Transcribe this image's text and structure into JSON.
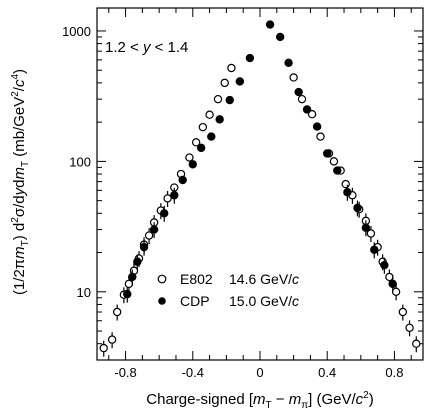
{
  "chart_data": {
    "type": "scatter",
    "xlabel": "Charge-signed [mT − mπ] (GeV/c2)",
    "ylabel": "(1/2πmT) d2σ/dydmT (mb/GeV2/c4)",
    "annotation": "1.2 < y < 1.4",
    "xlim": [
      -0.97,
      0.97
    ],
    "ylim": [
      3,
      1500
    ],
    "yscale": "log",
    "x_ticks": [
      -0.8,
      -0.4,
      0,
      0.4,
      0.8
    ],
    "x_tick_labels": [
      "-0.8",
      "-0.4",
      "0",
      "0.4",
      "0.8"
    ],
    "y_ticks": [
      10,
      100,
      1000
    ],
    "y_tick_labels": [
      "10",
      "100",
      "1000"
    ],
    "grid": false,
    "legend_position": "lower-center",
    "series": [
      {
        "name": "E802  14.6 GeV/c",
        "marker": "open-circle",
        "x": [
          -0.93,
          -0.88,
          -0.85,
          -0.81,
          -0.78,
          -0.75,
          -0.72,
          -0.69,
          -0.66,
          -0.63,
          -0.59,
          -0.55,
          -0.51,
          -0.47,
          -0.42,
          -0.38,
          -0.34,
          -0.3,
          -0.25,
          -0.21,
          -0.17,
          0.2,
          0.25,
          0.31,
          0.36,
          0.41,
          0.44,
          0.48,
          0.51,
          0.55,
          0.59,
          0.63,
          0.66,
          0.7,
          0.73,
          0.77,
          0.81,
          0.85,
          0.89,
          0.93
        ],
        "y": [
          3.7,
          4.3,
          7,
          9.5,
          11.5,
          14.5,
          18,
          23,
          27,
          34,
          42,
          52,
          63,
          80,
          107,
          140,
          183,
          228,
          300,
          400,
          520,
          440,
          300,
          230,
          155,
          115,
          100,
          85,
          67,
          55,
          43,
          35,
          28,
          22,
          17,
          13,
          10,
          7,
          5.3,
          4
        ]
      },
      {
        "name": "CDP  15.0 GeV/c",
        "marker": "filled-circle",
        "x": [
          -0.79,
          -0.76,
          -0.73,
          -0.69,
          -0.63,
          -0.57,
          -0.51,
          -0.46,
          -0.4,
          -0.35,
          -0.29,
          -0.24,
          -0.18,
          -0.12,
          -0.06,
          0.06,
          0.12,
          0.17,
          0.23,
          0.28,
          0.34,
          0.4,
          0.46,
          0.52,
          0.58,
          0.63,
          0.68,
          0.74,
          0.79
        ],
        "y": [
          9.6,
          13,
          17,
          22,
          30,
          40,
          55,
          72,
          95,
          127,
          155,
          210,
          295,
          410,
          620,
          1120,
          900,
          570,
          340,
          250,
          185,
          115,
          85,
          58,
          44,
          31,
          21,
          16,
          11.5
        ]
      }
    ]
  },
  "axis": {
    "xlabel_prefix": "Charge-signed [",
    "xlabel_m1": "m",
    "xlabel_sub1": "T",
    "xlabel_minus": " − ",
    "xlabel_m2": "m",
    "xlabel_sub2": "π",
    "xlabel_mid": "] (GeV/",
    "xlabel_c": "c",
    "xlabel_sup": "2",
    "xlabel_close": ")",
    "ylabel_a": "(1/2π",
    "ylabel_m": "m",
    "ylabel_sub": "T",
    "ylabel_b": ") d",
    "ylabel_sup2": "2",
    "ylabel_c": "σ/d",
    "ylabel_y": "y",
    "ylabel_d": "d",
    "ylabel_m2": "m",
    "ylabel_sub2": "T",
    "ylabel_e": " (mb/GeV",
    "ylabel_sup_g": "2",
    "ylabel_f": "/",
    "ylabel_cc": "c",
    "ylabel_sup4": "4",
    "ylabel_g": ")"
  },
  "annotation": {
    "left": "1.2 < ",
    "var": "y",
    "right": " < 1.4"
  },
  "legend": {
    "e802_name": "E802",
    "e802_value": "14.6 GeV/",
    "e802_unit": "c",
    "cdp_name": "CDP",
    "cdp_value": "15.0 GeV/",
    "cdp_unit": "c"
  }
}
